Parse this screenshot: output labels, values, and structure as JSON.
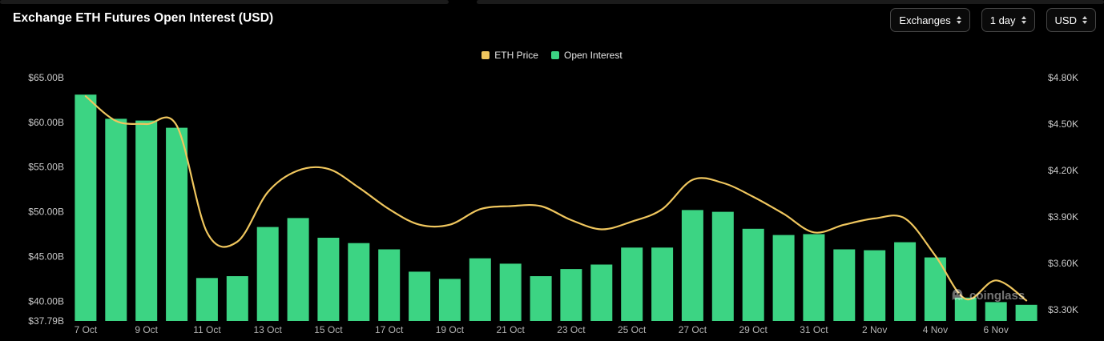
{
  "header": {
    "title": "Exchange ETH Futures Open Interest (USD)"
  },
  "controls": [
    {
      "label": "Exchanges"
    },
    {
      "label": "1 day"
    },
    {
      "label": "USD"
    }
  ],
  "legend": [
    {
      "label": "ETH Price",
      "color": "#efc65e"
    },
    {
      "label": "Open Interest",
      "color": "#3cd483"
    }
  ],
  "watermark": {
    "label": "coinglass"
  },
  "colors": {
    "background": "#000000",
    "bar": "#3cd483",
    "line": "#efc65e",
    "axis_text": "#c9c9c9",
    "x_axis_text": "#b3b3b3"
  },
  "chart_data": {
    "type": "bar",
    "title": "Exchange ETH Futures Open Interest (USD)",
    "x": [
      "7 Oct",
      "8 Oct",
      "9 Oct",
      "10 Oct",
      "11 Oct",
      "12 Oct",
      "13 Oct",
      "14 Oct",
      "15 Oct",
      "16 Oct",
      "17 Oct",
      "18 Oct",
      "19 Oct",
      "20 Oct",
      "21 Oct",
      "22 Oct",
      "23 Oct",
      "24 Oct",
      "25 Oct",
      "26 Oct",
      "27 Oct",
      "28 Oct",
      "29 Oct",
      "30 Oct",
      "31 Oct",
      "1 Nov",
      "2 Nov",
      "3 Nov",
      "4 Nov",
      "5 Nov",
      "6 Nov",
      "7 Nov"
    ],
    "x_tick_labels": [
      "7 Oct",
      "9 Oct",
      "11 Oct",
      "13 Oct",
      "15 Oct",
      "17 Oct",
      "19 Oct",
      "21 Oct",
      "23 Oct",
      "25 Oct",
      "27 Oct",
      "29 Oct",
      "31 Oct",
      "2 Nov",
      "4 Nov",
      "6 Nov"
    ],
    "series": [
      {
        "name": "Open Interest",
        "type": "bar",
        "axis": "left",
        "unit": "USD billions",
        "color": "#3cd483",
        "values": [
          63.1,
          60.4,
          60.2,
          59.4,
          42.6,
          42.8,
          48.3,
          49.3,
          47.1,
          46.5,
          45.8,
          43.3,
          42.5,
          44.8,
          44.2,
          42.8,
          43.6,
          44.1,
          46.0,
          46.0,
          50.2,
          50.0,
          48.1,
          47.4,
          47.5,
          45.8,
          45.7,
          46.6,
          44.9,
          40.4,
          39.9,
          39.6
        ]
      },
      {
        "name": "ETH Price",
        "type": "line",
        "axis": "right",
        "unit": "USD thousands",
        "color": "#efc65e",
        "values": [
          4.68,
          4.52,
          4.5,
          4.49,
          3.8,
          3.74,
          4.06,
          4.2,
          4.21,
          4.09,
          3.95,
          3.85,
          3.85,
          3.95,
          3.97,
          3.97,
          3.88,
          3.82,
          3.87,
          3.95,
          4.14,
          4.12,
          4.03,
          3.92,
          3.8,
          3.85,
          3.89,
          3.89,
          3.65,
          3.37,
          3.49,
          3.36
        ]
      }
    ],
    "left_axis": {
      "tick_labels": [
        "$65.00B",
        "$60.00B",
        "$55.00B",
        "$50.00B",
        "$45.00B",
        "$40.00B",
        "$37.79B"
      ],
      "tick_values": [
        65,
        60,
        55,
        50,
        45,
        40,
        37.79
      ],
      "min": 37.79,
      "max": 65
    },
    "right_axis": {
      "tick_labels": [
        "$4.80K",
        "$4.50K",
        "$4.20K",
        "$3.90K",
        "$3.60K",
        "$3.30K"
      ],
      "tick_values": [
        4.8,
        4.5,
        4.2,
        3.9,
        3.6,
        3.3
      ],
      "min": 3.2276,
      "max": 4.8
    },
    "grid": false,
    "legend_position": "top-center"
  }
}
